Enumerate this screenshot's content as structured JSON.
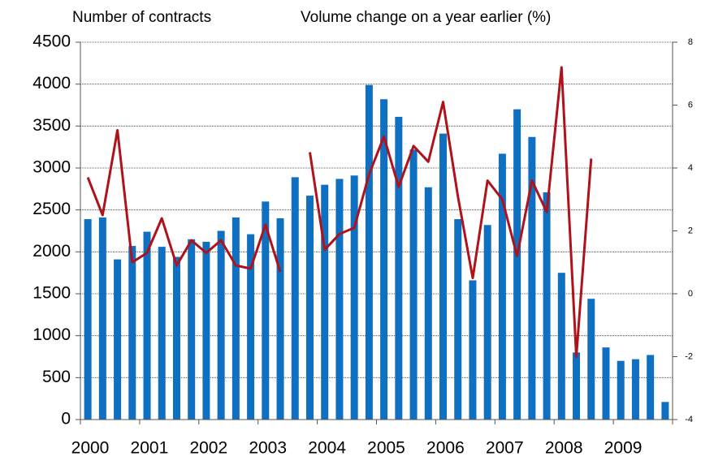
{
  "chart_data": {
    "type": "bar",
    "ylabel": "Number of contracts",
    "y2label": "Volume change on a year earlier (%)",
    "categories": [
      "2000",
      null,
      null,
      null,
      "2001",
      null,
      null,
      null,
      "2002",
      null,
      null,
      null,
      "2003",
      null,
      null,
      null,
      "2004",
      null,
      null,
      null,
      "2005",
      null,
      null,
      null,
      "2006",
      null,
      null,
      null,
      "2007",
      null,
      null,
      null,
      "2008",
      null,
      null,
      null,
      "2009",
      null,
      null,
      null
    ],
    "series": [
      {
        "type": "bar",
        "color": "#0f6fc0",
        "values": [
          2390,
          2410,
          1910,
          2070,
          2240,
          2060,
          1940,
          2150,
          2120,
          2250,
          2410,
          2210,
          2600,
          2400,
          2890,
          2670,
          2800,
          2870,
          2910,
          3990,
          3820,
          3610,
          3220,
          2770,
          3410,
          2390,
          1660,
          2320,
          3170,
          3700,
          3370,
          2710,
          1750,
          800,
          1440,
          860,
          700,
          720,
          770,
          210
        ]
      },
      {
        "type": "line",
        "axis": "y2",
        "color": "#b0121b",
        "values": [
          3.7,
          2.5,
          5.2,
          1.0,
          1.3,
          2.4,
          0.9,
          1.7,
          1.3,
          1.7,
          0.9,
          0.8,
          2.2,
          0.7,
          null,
          4.5,
          1.4,
          1.9,
          2.1,
          3.8,
          5.0,
          3.4,
          4.7,
          4.2,
          6.1,
          3.1,
          0.5,
          3.6,
          3.0,
          1.2,
          3.6,
          2.6,
          7.2,
          -2.0,
          4.3,
          null,
          null,
          null,
          null,
          null
        ]
      }
    ],
    "ylim": [
      0,
      4500
    ],
    "yticks": [
      0,
      500,
      1000,
      1500,
      2000,
      2500,
      3000,
      3500,
      4000,
      4500
    ],
    "y2lim": [
      -4,
      8
    ],
    "y2ticks": [
      -4,
      -2,
      0,
      2,
      4,
      6,
      8
    ],
    "grid": true
  }
}
